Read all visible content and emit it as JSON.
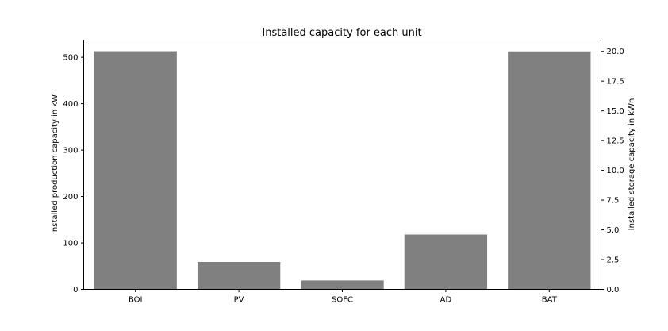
{
  "chart_data": {
    "type": "bar",
    "title": "Installed capacity for each unit",
    "categories": [
      "BOI",
      "PV",
      "SOFC",
      "AD",
      "BAT"
    ],
    "series": [
      {
        "values": [
          513,
          59,
          19,
          118,
          null
        ],
        "axis": "left"
      },
      {
        "values": [
          null,
          null,
          null,
          null,
          20.0
        ],
        "axis": "right"
      }
    ],
    "ylabel": "Installed production capacity in kW",
    "ylim": [
      0,
      537
    ],
    "yticks": [
      0,
      100,
      200,
      300,
      400,
      500
    ],
    "y2label": "Installed storage capacity in kWh",
    "y2lim": [
      0,
      20.95
    ],
    "y2ticks": [
      "0.0",
      "2.5",
      "5.0",
      "7.5",
      "10.0",
      "12.5",
      "15.0",
      "17.5",
      "20.0"
    ],
    "bar_color": "#808080",
    "grid": false
  }
}
